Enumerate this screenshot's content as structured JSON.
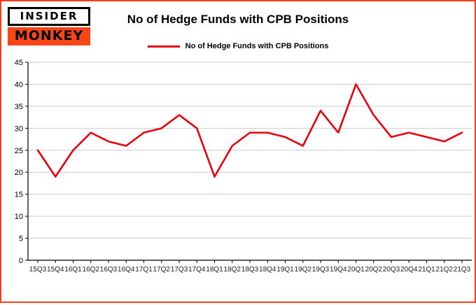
{
  "brand": {
    "line1": "INSIDER",
    "line2": "MONKEY"
  },
  "header": {
    "title": "No of Hedge Funds with CPB Positions"
  },
  "legend": {
    "label": "No of Hedge Funds with CPB Positions",
    "color": "#e8000d"
  },
  "colors": {
    "frame": "#fb3b1b",
    "line": "#e8000d",
    "logo_bg": "#fa4616",
    "grid": "#cccccc",
    "axis": "#000000"
  },
  "chart_data": {
    "type": "line",
    "title": "No of Hedge Funds with CPB Positions",
    "xlabel": "",
    "ylabel": "",
    "categories": [
      "15Q3",
      "15Q4",
      "16Q1",
      "16Q2",
      "16Q3",
      "16Q4",
      "17Q1",
      "17Q2",
      "17Q3",
      "17Q4",
      "18Q1",
      "18Q2",
      "18Q3",
      "18Q4",
      "19Q1",
      "19Q2",
      "19Q3",
      "19Q4",
      "20Q1",
      "20Q2",
      "20Q3",
      "20Q4",
      "21Q1",
      "21Q2",
      "21Q3"
    ],
    "series": [
      {
        "name": "No of Hedge Funds with CPB Positions",
        "color": "#e8000d",
        "values": [
          25,
          19,
          25,
          29,
          27,
          26,
          29,
          30,
          33,
          30,
          19,
          26,
          29,
          29,
          28,
          26,
          34,
          29,
          40,
          33,
          28,
          29,
          28,
          27,
          29
        ]
      }
    ],
    "ylim": [
      0,
      45
    ],
    "ytick_step": 5,
    "grid": true,
    "legend_position": "top"
  }
}
